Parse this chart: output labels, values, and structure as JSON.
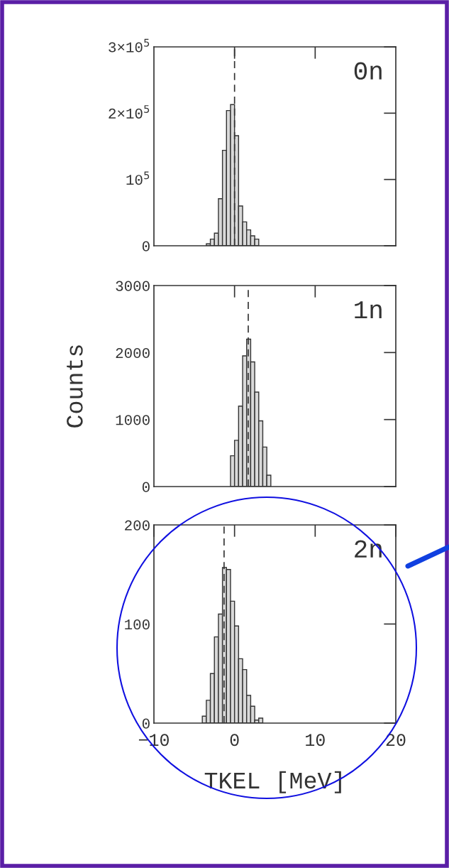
{
  "chart_data": [
    {
      "type": "histogram",
      "bins": [
        -3.5,
        -3,
        -2.5,
        -2,
        -1.5,
        -1,
        -0.5,
        0,
        0.5,
        1,
        1.5,
        2,
        2.5,
        3
      ],
      "values": [
        3000,
        10000,
        19000,
        71000,
        144000,
        204000,
        213000,
        166000,
        60000,
        36000,
        24000,
        15000,
        10000
      ],
      "color": "#d9d9d9",
      "xlim": [
        -10,
        20
      ],
      "xticks": [
        0,
        10
      ],
      "ylim": [
        0,
        300000
      ],
      "yticks": [
        0,
        {
          "value": 100000,
          "label": "10$^{5}$"
        },
        {
          "value": 200000,
          "label": "2×10$^{5}$"
        },
        {
          "value": 300000,
          "label": "3×10$^{5}$"
        }
      ],
      "tick_labels": "y",
      "annotations": [
        "0n"
      ],
      "ref_lines": [
        {
          "axis": "x",
          "value": 0,
          "line_style": "dashed",
          "color": "#333333"
        }
      ],
      "grid": false,
      "legend": false
    },
    {
      "type": "histogram",
      "bins": [
        -0.5,
        0,
        0.5,
        1,
        1.5,
        2,
        2.5,
        3,
        3.5,
        4,
        4.5
      ],
      "values": [
        460,
        690,
        1200,
        1950,
        2200,
        1860,
        1410,
        980,
        590,
        170
      ],
      "color": "#d9d9d9",
      "xlim": [
        -10,
        20
      ],
      "xticks": [
        0,
        10
      ],
      "ylim": [
        0,
        3000
      ],
      "yticks": [
        0,
        1000,
        2000,
        3000
      ],
      "tick_labels": "y",
      "ylabel": "Counts",
      "annotations": [
        "1n"
      ],
      "ref_lines": [
        {
          "axis": "x",
          "value": 1.7,
          "line_style": "dashed",
          "color": "#333333"
        }
      ],
      "grid": false,
      "legend": false
    },
    {
      "type": "histogram",
      "bins": [
        -4,
        -3.5,
        -3,
        -2.5,
        -2,
        -1.5,
        -1,
        -0.5,
        0,
        0.5,
        1,
        1.5,
        2,
        2.5,
        3,
        3.5
      ],
      "values": [
        7,
        23,
        50,
        87,
        110,
        157,
        155,
        123,
        98,
        65,
        54,
        28,
        17,
        3,
        5
      ],
      "color": "#d9d9d9",
      "xlim": [
        -10,
        20
      ],
      "xticks": [
        {
          "value": -10,
          "label": "−10"
        },
        0,
        10,
        20
      ],
      "ylim": [
        0,
        200
      ],
      "yticks": [
        0,
        100,
        200
      ],
      "xlabel": "TKEL [MeV]",
      "annotations": [
        "2n"
      ],
      "ref_lines": [
        {
          "axis": "x",
          "value": -1.3,
          "line_style": "dashed",
          "color": "#333333"
        }
      ],
      "grid": false,
      "legend": false
    }
  ]
}
